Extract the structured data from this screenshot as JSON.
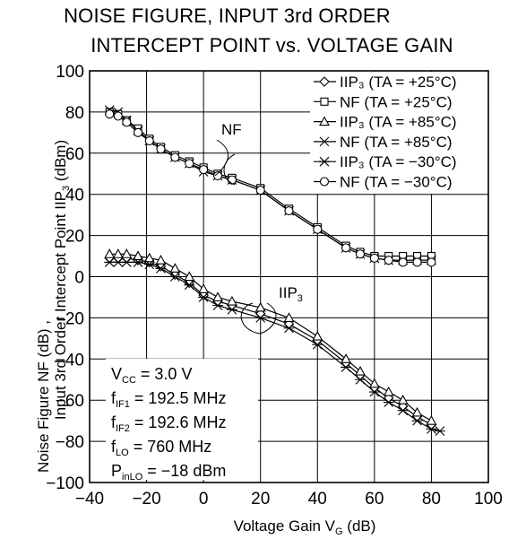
{
  "chart_data": {
    "type": "line",
    "title": [
      "NOISE FIGURE, INPUT 3rd ORDER",
      "INTERCEPT POINT vs. VOLTAGE GAIN"
    ],
    "xlabel": "Voltage Gain V_G (dB)",
    "ylabel": [
      "Noise Figure NF (dB) ,",
      "Input 3rd Order Intercept Point IIP3 (dBm)"
    ],
    "xlim": [
      -40,
      100
    ],
    "ylim": [
      -100,
      100
    ],
    "x_ticks": [
      "−40",
      "−20",
      "0",
      "20",
      "40",
      "60",
      "80",
      "100"
    ],
    "y_ticks": [
      "100",
      "80",
      "60",
      "40",
      "20",
      "0",
      "−20",
      "−40",
      "−60",
      "−80",
      "−100"
    ],
    "grid": true,
    "legend_position": "top-right",
    "annotations": [
      "NF",
      "IIP3"
    ],
    "conditions": [
      "VCC = 3.0 V",
      "fIF1 = 192.5 MHz",
      "fIF2 = 192.6 MHz",
      "fLO = 760 MHz",
      "PinLO = −18 dBm"
    ],
    "series": [
      {
        "name": "IIP3 (TA = +25°C)",
        "marker": "diamond",
        "x": [
          -33,
          -30,
          -27,
          -23,
          -19,
          -15,
          -10,
          -5,
          0,
          5,
          10,
          20,
          30,
          40,
          50,
          55,
          60,
          65,
          70,
          75,
          80
        ],
        "y": [
          9,
          9,
          9,
          8,
          7,
          5,
          1,
          -3,
          -9,
          -12,
          -14,
          -18,
          -23,
          -31,
          -42,
          -48,
          -54,
          -59,
          -63,
          -68,
          -72
        ]
      },
      {
        "name": "NF (TA = +25°C)",
        "marker": "square",
        "x": [
          -33,
          -30,
          -27,
          -23,
          -19,
          -15,
          -10,
          -5,
          0,
          5,
          10,
          20,
          30,
          40,
          50,
          55,
          60,
          65,
          70,
          75,
          80
        ],
        "y": [
          80,
          79,
          76,
          72,
          67,
          63,
          59,
          56,
          53,
          50,
          48,
          43,
          33,
          24,
          15,
          12,
          10,
          10,
          10,
          10,
          10
        ]
      },
      {
        "name": "IIP3 (TA = +85°C)",
        "marker": "triangle",
        "x": [
          -33,
          -30,
          -27,
          -23,
          -19,
          -15,
          -10,
          -5,
          0,
          5,
          10,
          20,
          30,
          40,
          50,
          55,
          60,
          65,
          70,
          75,
          80
        ],
        "y": [
          11,
          11,
          11,
          10,
          9,
          8,
          4,
          0,
          -6,
          -10,
          -12,
          -15,
          -20,
          -29,
          -40,
          -46,
          -52,
          -56,
          -60,
          -66,
          -70
        ]
      },
      {
        "name": "NF (TA = +85°C)",
        "marker": "x",
        "x": [
          -33,
          -30,
          -27,
          -23,
          -19,
          -15,
          -10,
          -5,
          0,
          5,
          10,
          20,
          30,
          40,
          50,
          55,
          60,
          65,
          70,
          75,
          80
        ],
        "y": [
          81,
          80,
          76,
          71,
          66,
          62,
          58,
          55,
          51,
          49,
          47,
          42,
          32,
          23,
          14,
          11,
          9,
          8,
          8,
          8,
          8
        ]
      },
      {
        "name": "IIP3 (TA = −30°C)",
        "marker": "asterisk",
        "x": [
          -33,
          -30,
          -27,
          -23,
          -19,
          -15,
          -10,
          -5,
          0,
          5,
          10,
          20,
          30,
          40,
          50,
          55,
          60,
          65,
          70,
          75,
          80,
          83
        ],
        "y": [
          7,
          7,
          7,
          7,
          6,
          4,
          0,
          -4,
          -10,
          -14,
          -16,
          -20,
          -25,
          -33,
          -44,
          -50,
          -56,
          -61,
          -65,
          -70,
          -74,
          -75
        ]
      },
      {
        "name": "NF (TA = −30°C)",
        "marker": "circle",
        "x": [
          -33,
          -30,
          -27,
          -23,
          -19,
          -15,
          -10,
          -5,
          0,
          5,
          10,
          20,
          30,
          40,
          50,
          55,
          60,
          65,
          70,
          75,
          80
        ],
        "y": [
          79,
          78,
          75,
          70,
          66,
          62,
          58,
          55,
          52,
          49,
          47,
          42,
          32,
          23,
          14,
          11,
          9,
          8,
          7,
          7,
          7
        ]
      }
    ]
  }
}
